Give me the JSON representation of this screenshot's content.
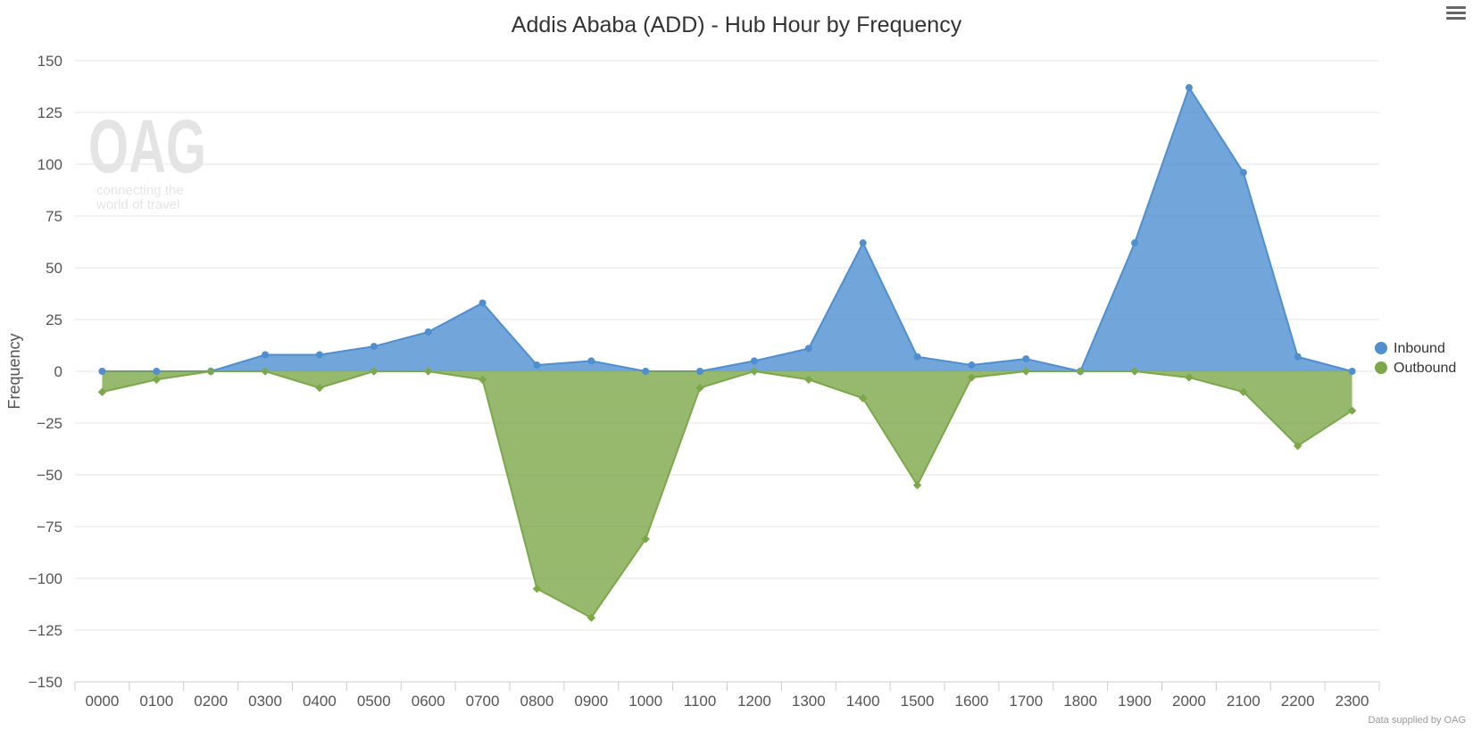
{
  "title": "Addis Ababa (ADD) - Hub Hour by Frequency",
  "credits": "Data supplied by OAG",
  "watermark": {
    "logo": "OAG",
    "tagline_line1": "connecting the",
    "tagline_line2": "world of travel"
  },
  "menu_icon": "hamburger-menu-icon",
  "colors": {
    "inbound": "#4f8fcf",
    "outbound": "#7ca84a",
    "grid": "#e6e6e6",
    "axis_text": "#555555"
  },
  "chart_data": {
    "type": "area",
    "title": "Addis Ababa (ADD) - Hub Hour by Frequency",
    "xlabel": "",
    "ylabel": "Frequency",
    "ylim": [
      -150,
      150
    ],
    "yticks": [
      150,
      125,
      100,
      75,
      50,
      25,
      0,
      -25,
      -50,
      -75,
      -100,
      -125,
      -150
    ],
    "grid": true,
    "legend_position": "right",
    "categories": [
      "0000",
      "0100",
      "0200",
      "0300",
      "0400",
      "0500",
      "0600",
      "0700",
      "0800",
      "0900",
      "1000",
      "1100",
      "1200",
      "1300",
      "1400",
      "1500",
      "1600",
      "1700",
      "1800",
      "1900",
      "2000",
      "2100",
      "2200",
      "2300"
    ],
    "series": [
      {
        "name": "Inbound",
        "color": "#4f8fcf",
        "marker": "circle",
        "values": [
          0,
          0,
          0,
          8,
          8,
          12,
          19,
          33,
          3,
          5,
          0,
          0,
          5,
          11,
          62,
          7,
          3,
          6,
          0,
          62,
          137,
          96,
          7,
          0
        ]
      },
      {
        "name": "Outbound",
        "color": "#7ca84a",
        "marker": "diamond",
        "values": [
          -10,
          -4,
          0,
          0,
          -8,
          0,
          0,
          -4,
          -105,
          -119,
          -81,
          -8,
          0,
          -4,
          -13,
          -55,
          -3,
          0,
          0,
          0,
          -3,
          -10,
          -36,
          -19
        ]
      }
    ]
  }
}
